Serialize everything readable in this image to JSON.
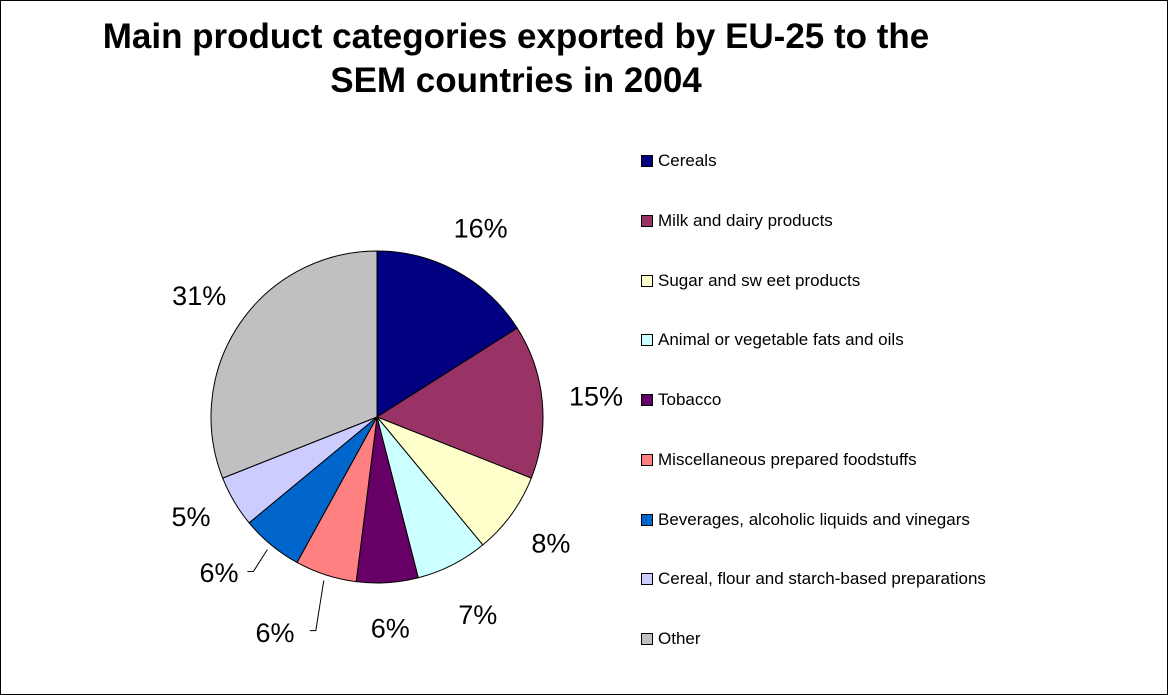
{
  "chart_data": {
    "type": "pie",
    "title": "Main product categories exported by EU-25 to the\nSEM countries in 2004",
    "legend_position": "right",
    "slices": [
      {
        "label": "Cereals",
        "value": 16,
        "display": "16%",
        "color": "#000080"
      },
      {
        "label": "Milk and dairy products",
        "value": 15,
        "display": "15%",
        "color": "#993366"
      },
      {
        "label": "Sugar and sw eet products",
        "value": 8,
        "display": "8%",
        "color": "#ffffcc"
      },
      {
        "label": "Animal or vegetable fats and oils",
        "value": 7,
        "display": "7%",
        "color": "#ccffff"
      },
      {
        "label": "Tobacco",
        "value": 6,
        "display": "6%",
        "color": "#660066"
      },
      {
        "label": "Miscellaneous prepared foodstuffs",
        "value": 6,
        "display": "6%",
        "color": "#ff8080"
      },
      {
        "label": "Beverages, alcoholic liquids and vinegars",
        "value": 6,
        "display": "6%",
        "color": "#0066cc"
      },
      {
        "label": "Cereal, flour and starch-based preparations",
        "value": 5,
        "display": "5%",
        "color": "#ccccff"
      },
      {
        "label": "Other",
        "value": 31,
        "display": "31%",
        "color": "#c0c0c0"
      }
    ]
  }
}
